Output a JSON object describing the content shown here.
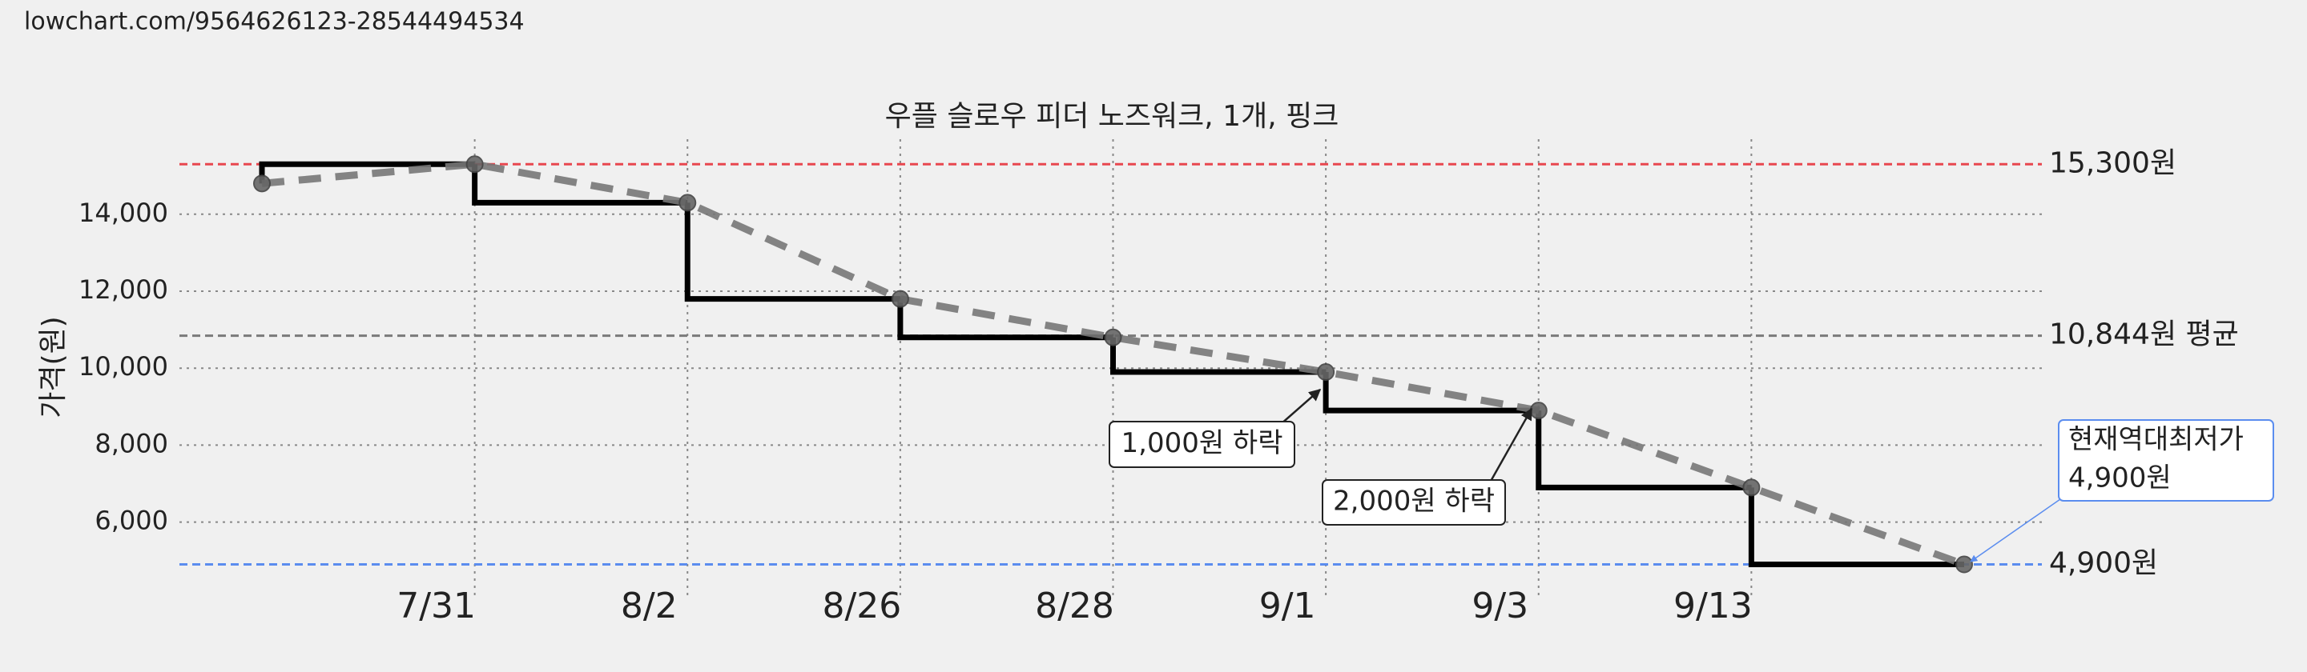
{
  "url": "lowchart.com/9564626123-28544494534",
  "chart_data": {
    "type": "line",
    "title": "우플 슬로우 피더 노즈워크, 1개, 핑크",
    "y_label": "가격(원)",
    "categories": [
      null,
      "7/31",
      "8/2",
      "8/26",
      "8/28",
      "9/1",
      "9/3",
      "9/13",
      null
    ],
    "values": [
      14800,
      15300,
      14300,
      11800,
      10800,
      9900,
      8900,
      6900,
      4900
    ],
    "color": "#000000",
    "trend_color": "#777777",
    "ylim": [
      4100,
      15950
    ],
    "yticks": [
      {
        "value": 6000,
        "label": "6,000"
      },
      {
        "value": 8000,
        "label": "8,000"
      },
      {
        "value": 10000,
        "label": "10,000"
      },
      {
        "value": 12000,
        "label": "12,000"
      },
      {
        "value": 14000,
        "label": "14,000"
      }
    ],
    "grid": true,
    "reference_lines": [
      {
        "value": 15300,
        "label": "15,300원",
        "color": "#e8474f"
      },
      {
        "value": 10844,
        "label": "10,844원 평균",
        "color": "#7a7a7a"
      },
      {
        "value": 4900,
        "label": "4,900원",
        "color": "#5b8def"
      }
    ],
    "annotations": [
      {
        "lines": [
          "1,000원 하락"
        ]
      },
      {
        "lines": [
          "2,000원 하락"
        ]
      },
      {
        "lines": [
          "현재역대최저가",
          "4,900원"
        ],
        "color": "#5b8def"
      }
    ]
  }
}
